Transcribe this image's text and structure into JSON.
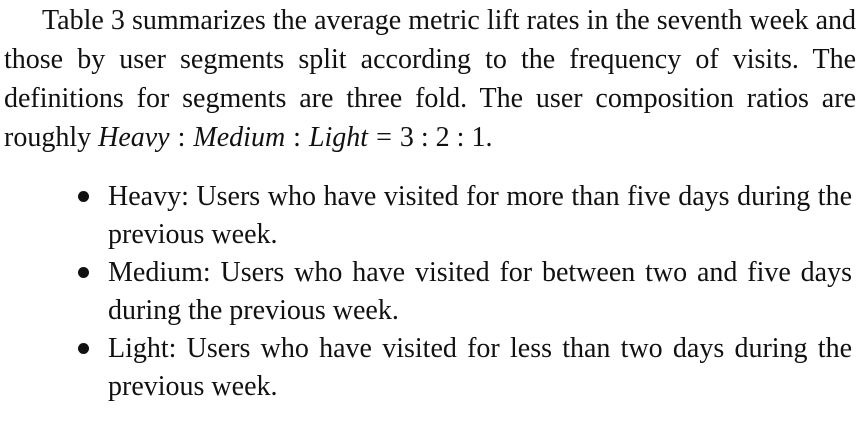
{
  "paragraph": {
    "text": "Table 3 summarizes the average metric lift rates in the seventh week and those by user segments split according to the frequency of visits. The definitions for segments are three fold. The user composition ratios are roughly",
    "math": {
      "heavy": "Heavy",
      "medium": "Medium",
      "light": "Light",
      "sep": ":",
      "eq": "=",
      "ratio": "3 : 2 : 1",
      "end": "."
    }
  },
  "bullets": [
    {
      "text": "Heavy: Users who have visited for more than five days during the previous week."
    },
    {
      "text": "Medium: Users who have visited for between two and five days during the previous week."
    },
    {
      "text": "Light: Users who have visited for less than two days during the previous week."
    }
  ]
}
